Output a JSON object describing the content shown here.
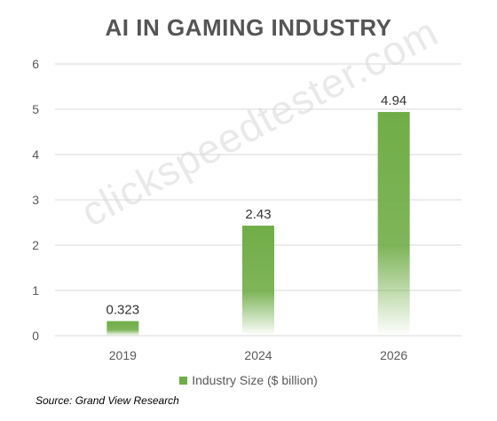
{
  "title": "AI IN GAMING INDUSTRY",
  "watermark": "clickspeedtester.com",
  "legend_label": "Industry Size ($ billion)",
  "source": "Source: Grand View Research",
  "colors": {
    "bar": "#70ad47",
    "grid": "#d9d9d9",
    "text": "#595959"
  },
  "chart_data": {
    "type": "bar",
    "title": "AI IN GAMING INDUSTRY",
    "categories": [
      "2019",
      "2024",
      "2026"
    ],
    "series": [
      {
        "name": "Industry Size ($ billion)",
        "values": [
          0.323,
          2.43,
          4.94
        ],
        "labels": [
          "0.323",
          "2.43",
          "4.94"
        ]
      }
    ],
    "ylim": [
      0,
      6
    ],
    "yticks": [
      0,
      1,
      2,
      3,
      4,
      5,
      6
    ],
    "grid": true,
    "legend": "bottom"
  }
}
